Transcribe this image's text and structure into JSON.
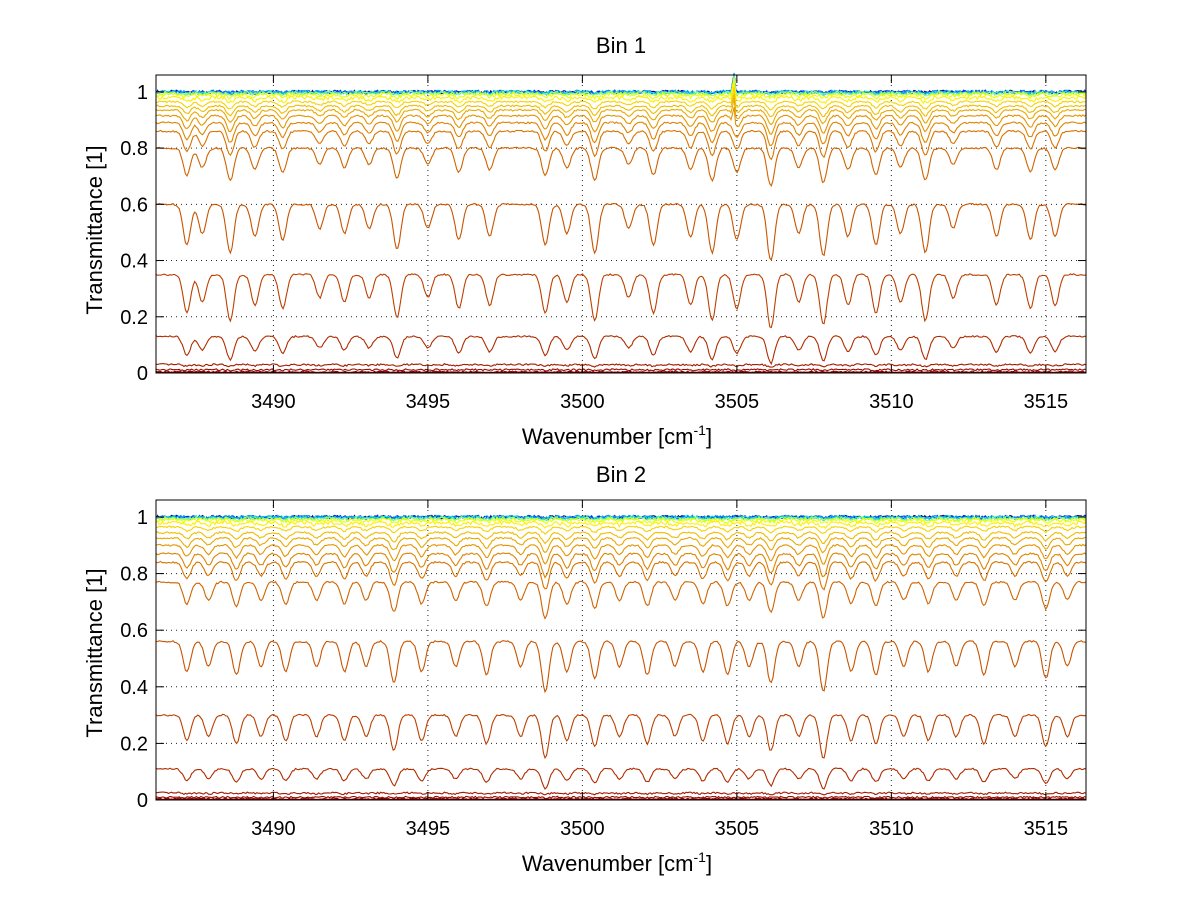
{
  "chart_data": [
    {
      "type": "line",
      "title": "Bin 1",
      "xlabel": "Wavenumber [cm",
      "xlabel_sup": "-1",
      "xlabel_end": "]",
      "ylabel": "Transmittance [1]",
      "xlim": [
        3486.2,
        3516.3
      ],
      "ylim": [
        0,
        1.06
      ],
      "xticks": [
        3490,
        3495,
        3500,
        3505,
        3510,
        3515
      ],
      "yticks": [
        0,
        0.2,
        0.4,
        0.6,
        0.8,
        1
      ],
      "grid": true,
      "legend": "none",
      "series_colors": [
        "#00007f",
        "#0030ff",
        "#00a0ff",
        "#20e0d0",
        "#a0ff60",
        "#e8ff00",
        "#ffee00",
        "#f6d200",
        "#f0bc00",
        "#eaa800",
        "#e49400",
        "#de8400",
        "#d87400",
        "#d06400",
        "#c85400",
        "#bc4000",
        "#b02c00",
        "#a41a00",
        "#980a00",
        "#8c0000",
        "#800000"
      ],
      "series_baselines": [
        1.0,
        1.0,
        1.0,
        0.998,
        0.996,
        0.99,
        0.98,
        0.965,
        0.95,
        0.935,
        0.915,
        0.89,
        0.86,
        0.8,
        0.6,
        0.35,
        0.13,
        0.03,
        0.012,
        0.004,
        0.0
      ],
      "absorption_lines": [
        3487.2,
        3487.7,
        3488.6,
        3489.4,
        3490.3,
        3491.5,
        3492.3,
        3493.1,
        3494.0,
        3495.0,
        3496.0,
        3497.0,
        3498.8,
        3499.5,
        3500.4,
        3501.5,
        3502.3,
        3503.5,
        3504.2,
        3505.0,
        3506.1,
        3507.0,
        3507.8,
        3508.6,
        3509.5,
        3510.3,
        3511.1,
        3512.0,
        3513.4,
        3514.5,
        3515.3
      ],
      "absorption_depths": [
        0.25,
        0.18,
        0.3,
        0.2,
        0.22,
        0.15,
        0.18,
        0.15,
        0.28,
        0.15,
        0.22,
        0.2,
        0.25,
        0.18,
        0.3,
        0.15,
        0.25,
        0.2,
        0.3,
        0.22,
        0.35,
        0.18,
        0.32,
        0.2,
        0.25,
        0.18,
        0.3,
        0.15,
        0.2,
        0.22,
        0.2
      ],
      "spike_at": 3504.9
    },
    {
      "type": "line",
      "title": "Bin 2",
      "xlabel": "Wavenumber [cm",
      "xlabel_sup": "-1",
      "xlabel_end": "]",
      "ylabel": "Transmittance [1]",
      "xlim": [
        3486.2,
        3516.3
      ],
      "ylim": [
        0,
        1.06
      ],
      "xticks": [
        3490,
        3495,
        3500,
        3505,
        3510,
        3515
      ],
      "yticks": [
        0,
        0.2,
        0.4,
        0.6,
        0.8,
        1
      ],
      "grid": true,
      "legend": "none",
      "series_colors": [
        "#00007f",
        "#0030ff",
        "#00a0ff",
        "#20e0d0",
        "#a0ff60",
        "#e8ff00",
        "#ffee00",
        "#f6d200",
        "#f0bc00",
        "#eaa800",
        "#e49400",
        "#de8400",
        "#d87400",
        "#d06400",
        "#c85400",
        "#bc4000",
        "#b02c00",
        "#a41a00",
        "#980a00",
        "#8c0000",
        "#800000"
      ],
      "series_baselines": [
        1.0,
        1.0,
        1.0,
        0.998,
        0.995,
        0.99,
        0.98,
        0.965,
        0.945,
        0.925,
        0.9,
        0.87,
        0.84,
        0.77,
        0.56,
        0.3,
        0.11,
        0.025,
        0.01,
        0.004,
        0.0
      ],
      "absorption_lines": [
        3487.2,
        3487.9,
        3488.8,
        3489.6,
        3490.4,
        3491.4,
        3492.3,
        3493.0,
        3493.9,
        3494.8,
        3495.9,
        3496.9,
        3498.0,
        3498.8,
        3499.5,
        3500.4,
        3501.2,
        3502.1,
        3503.0,
        3503.9,
        3504.7,
        3505.4,
        3506.1,
        3507.0,
        3507.8,
        3508.7,
        3509.5,
        3510.4,
        3511.2,
        3512.1,
        3513.0,
        3514.0,
        3515.0,
        3515.7
      ],
      "absorption_depths": [
        0.18,
        0.15,
        0.2,
        0.15,
        0.18,
        0.15,
        0.18,
        0.15,
        0.25,
        0.18,
        0.15,
        0.2,
        0.15,
        0.3,
        0.18,
        0.22,
        0.15,
        0.2,
        0.15,
        0.18,
        0.2,
        0.15,
        0.25,
        0.15,
        0.3,
        0.18,
        0.2,
        0.15,
        0.18,
        0.15,
        0.2,
        0.15,
        0.22,
        0.15
      ],
      "spike_at": null
    }
  ]
}
